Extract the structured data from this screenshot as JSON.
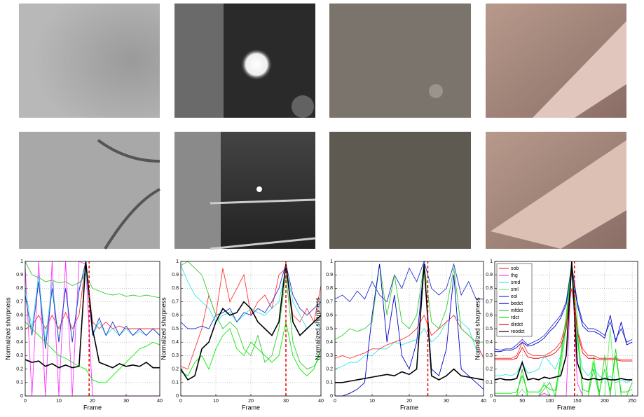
{
  "chart_data": [
    {
      "type": "line",
      "xlabel": "Frame",
      "ylabel": "Normalized sharpness",
      "xlim": [
        0,
        40
      ],
      "ylim": [
        0,
        1
      ],
      "xticks": [
        0,
        10,
        20,
        30,
        40
      ],
      "yticks": [
        0,
        0.1,
        0.2,
        0.3,
        0.4,
        0.5,
        0.6,
        0.7,
        0.8,
        0.9,
        1
      ],
      "grid": true,
      "vline": 19,
      "x": [
        0,
        2,
        4,
        6,
        8,
        10,
        12,
        14,
        16,
        18,
        20,
        22,
        24,
        26,
        28,
        30,
        32,
        34,
        36,
        38,
        40
      ],
      "series": [
        {
          "color": "#ff3333",
          "values": [
            0.5,
            0.52,
            0.6,
            0.5,
            0.6,
            0.5,
            0.62,
            0.5,
            0.6,
            1.0,
            0.55,
            0.5,
            0.55,
            0.5,
            0.52,
            0.5,
            0.5,
            0.5,
            0.5,
            0.5,
            0.5
          ]
        },
        {
          "color": "#ff33ff",
          "values": [
            0.95,
            0,
            1,
            0,
            1,
            0,
            1,
            0,
            1,
            0.98,
            0,
            0,
            0,
            0,
            0,
            0,
            0,
            0,
            0,
            0,
            0
          ]
        },
        {
          "color": "#33e6e6",
          "values": [
            0.8,
            0.5,
            0.9,
            0.4,
            0.85,
            0.4,
            0.8,
            0.4,
            0.8,
            0.95,
            0.45,
            0.55,
            0.45,
            0.5,
            0.45,
            0.5,
            0.45,
            0.48,
            0.45,
            0.5,
            0.45
          ]
        },
        {
          "color": "#2233cc",
          "values": [
            0.75,
            0.45,
            0.85,
            0.35,
            0.8,
            0.4,
            0.8,
            0.4,
            0.78,
            1.0,
            0.45,
            0.58,
            0.45,
            0.55,
            0.45,
            0.52,
            0.45,
            0.5,
            0.45,
            0.5,
            0.45
          ]
        },
        {
          "color": "#33cc33",
          "values": [
            1.0,
            0.9,
            0.88,
            0.85,
            0.86,
            0.84,
            0.85,
            0.82,
            0.84,
            0.9,
            0.8,
            0.78,
            0.76,
            0.75,
            0.76,
            0.74,
            0.75,
            0.74,
            0.75,
            0.74,
            0.73
          ]
        },
        {
          "color": "#00ee00",
          "values": [
            0.55,
            0.5,
            0.45,
            0.4,
            0.35,
            0.3,
            0.28,
            0.25,
            0.22,
            0.2,
            0.12,
            0.1,
            0.1,
            0.15,
            0.2,
            0.25,
            0.3,
            0.35,
            0.37,
            0.4,
            0.38
          ]
        },
        {
          "color": "#000000",
          "values": [
            0.27,
            0.25,
            0.26,
            0.22,
            0.24,
            0.21,
            0.23,
            0.21,
            0.22,
            1.0,
            0.5,
            0.25,
            0.23,
            0.21,
            0.24,
            0.22,
            0.23,
            0.22,
            0.25,
            0.21,
            0.21
          ]
        }
      ]
    },
    {
      "type": "line",
      "xlabel": "Frame",
      "ylabel": "Normalized sharpness",
      "xlim": [
        0,
        40
      ],
      "ylim": [
        0,
        1
      ],
      "xticks": [
        0,
        10,
        20,
        30,
        40
      ],
      "yticks": [
        0,
        0.1,
        0.2,
        0.3,
        0.4,
        0.5,
        0.6,
        0.7,
        0.8,
        0.9,
        1
      ],
      "grid": true,
      "vline": 30,
      "x": [
        0,
        2,
        4,
        6,
        8,
        10,
        12,
        14,
        16,
        18,
        20,
        22,
        24,
        26,
        28,
        30,
        32,
        34,
        36,
        38,
        40
      ],
      "series": [
        {
          "color": "#ff3333",
          "values": [
            0.22,
            0.2,
            0.35,
            0.5,
            0.75,
            0.6,
            0.95,
            0.7,
            0.8,
            0.9,
            0.6,
            0.7,
            0.75,
            0.65,
            0.9,
            0.95,
            0.6,
            0.55,
            0.65,
            0.55,
            0.82
          ]
        },
        {
          "color": "#33e6e6",
          "values": [
            0.97,
            0.85,
            0.75,
            0.7,
            0.65,
            0.55,
            0.6,
            0.62,
            0.55,
            0.6,
            0.65,
            0.62,
            0.6,
            0.65,
            0.7,
            0.95,
            0.7,
            0.6,
            0.5,
            0.55,
            0.5
          ]
        },
        {
          "color": "#2233cc",
          "values": [
            0.55,
            0.5,
            0.5,
            0.52,
            0.5,
            0.6,
            0.62,
            0.65,
            0.55,
            0.62,
            0.6,
            0.65,
            0.62,
            0.7,
            0.8,
            0.98,
            0.75,
            0.65,
            0.6,
            0.65,
            0.7
          ]
        },
        {
          "color": "#33cc33",
          "values": [
            0.97,
            1.0,
            0.95,
            0.9,
            0.75,
            0.6,
            0.5,
            0.55,
            0.5,
            0.35,
            0.3,
            0.45,
            0.25,
            0.3,
            0.5,
            0.9,
            0.4,
            0.25,
            0.2,
            0.22,
            0.3
          ]
        },
        {
          "color": "#00ee00",
          "values": [
            0.18,
            0.15,
            0.25,
            0.3,
            0.2,
            0.35,
            0.45,
            0.5,
            0.35,
            0.3,
            0.4,
            0.35,
            0.3,
            0.25,
            0.3,
            0.55,
            0.3,
            0.2,
            0.15,
            0.2,
            0.35
          ]
        },
        {
          "color": "#000000",
          "values": [
            0.2,
            0.12,
            0.15,
            0.35,
            0.4,
            0.55,
            0.65,
            0.6,
            0.62,
            0.7,
            0.65,
            0.55,
            0.5,
            0.45,
            0.55,
            0.98,
            0.55,
            0.45,
            0.5,
            0.55,
            0.6
          ]
        }
      ]
    },
    {
      "type": "line",
      "xlabel": "Frame",
      "ylabel": "Normalized sharpness",
      "xlim": [
        0,
        40
      ],
      "ylim": [
        0,
        1
      ],
      "xticks": [
        0,
        10,
        20,
        30,
        40
      ],
      "yticks": [
        0,
        0.1,
        0.2,
        0.3,
        0.4,
        0.5,
        0.6,
        0.7,
        0.8,
        0.9,
        1
      ],
      "grid": true,
      "vline": 25,
      "x": [
        0,
        2,
        4,
        6,
        8,
        10,
        12,
        14,
        16,
        18,
        20,
        22,
        24,
        26,
        28,
        30,
        32,
        34,
        36,
        38,
        40
      ],
      "series": [
        {
          "color": "#2233cc",
          "values": [
            0.72,
            0.75,
            0.7,
            0.78,
            0.72,
            0.85,
            0.75,
            0.7,
            0.9,
            0.8,
            0.95,
            0.85,
            1.0,
            0.8,
            0.75,
            0.8,
            0.98,
            0.75,
            0.85,
            0.72,
            0.72
          ]
        },
        {
          "color": "#33e6e6",
          "values": [
            0.2,
            0.22,
            0.25,
            0.25,
            0.3,
            0.3,
            0.35,
            0.35,
            0.4,
            0.38,
            0.4,
            0.42,
            0.5,
            0.4,
            0.45,
            0.55,
            0.6,
            0.55,
            0.5,
            0.35,
            0.3
          ]
        },
        {
          "color": "#ff3333",
          "values": [
            0.28,
            0.3,
            0.28,
            0.3,
            0.32,
            0.35,
            0.35,
            0.38,
            0.4,
            0.42,
            0.45,
            0.5,
            0.6,
            0.45,
            0.5,
            0.55,
            0.6,
            0.5,
            0.45,
            0.4,
            0.28
          ]
        },
        {
          "color": "#33cc33",
          "values": [
            0.42,
            0.45,
            0.5,
            0.48,
            0.5,
            0.55,
            0.98,
            0.6,
            0.9,
            0.55,
            0.5,
            0.6,
            0.98,
            0.55,
            0.5,
            0.65,
            0.95,
            0.5,
            0.45,
            0.4,
            0.4
          ]
        },
        {
          "color": "#0000cc",
          "values": [
            0,
            0,
            0.02,
            0.05,
            0.1,
            0.6,
            0.98,
            0.4,
            0.75,
            0.3,
            0.2,
            0.4,
            0.98,
            0.2,
            0.15,
            0.35,
            0.9,
            0.2,
            0.15,
            0.1,
            0.05
          ]
        },
        {
          "color": "#000000",
          "values": [
            0.1,
            0.1,
            0.11,
            0.12,
            0.13,
            0.14,
            0.15,
            0.16,
            0.15,
            0.18,
            0.16,
            0.2,
            0.98,
            0.15,
            0.12,
            0.15,
            0.2,
            0.15,
            0.14,
            0.13,
            0.12
          ]
        }
      ]
    },
    {
      "type": "line",
      "xlabel": "Frame",
      "ylabel": "Normalized sharpness",
      "xlim": [
        0,
        260
      ],
      "ylim": [
        0,
        1
      ],
      "xticks": [
        0,
        50,
        100,
        150,
        200,
        250
      ],
      "yticks": [
        0,
        0.1,
        0.2,
        0.3,
        0.4,
        0.5,
        0.6,
        0.7,
        0.8,
        0.9,
        1
      ],
      "grid": true,
      "vline": 145,
      "legend": "upper-left",
      "x": [
        0,
        10,
        20,
        30,
        40,
        50,
        60,
        70,
        80,
        90,
        100,
        110,
        120,
        130,
        140,
        150,
        160,
        170,
        180,
        190,
        200,
        210,
        220,
        230,
        240,
        250
      ],
      "series": [
        {
          "name": "sob",
          "color": "#ff3333",
          "values": [
            0.28,
            0.28,
            0.28,
            0.28,
            0.3,
            0.4,
            0.32,
            0.3,
            0.3,
            0.3,
            0.32,
            0.35,
            0.4,
            0.55,
            0.8,
            0.5,
            0.35,
            0.3,
            0.3,
            0.28,
            0.28,
            0.28,
            0.28,
            0.27,
            0.27,
            0.27
          ]
        },
        {
          "name": "thg",
          "color": "#ff33ff",
          "values": [
            0,
            0,
            0,
            0,
            0,
            0,
            0,
            0,
            0,
            0.02,
            0,
            0,
            0,
            0,
            1.0,
            0.1,
            0,
            0,
            0,
            0,
            0,
            0,
            0,
            0,
            0,
            0
          ]
        },
        {
          "name": "smd",
          "color": "#33e6e6",
          "values": [
            0.15,
            0.15,
            0.16,
            0.15,
            0.17,
            0.25,
            0.17,
            0.18,
            0.2,
            0.3,
            0.25,
            0.2,
            0.3,
            0.5,
            0.95,
            0.4,
            0.2,
            0.15,
            0.2,
            0.15,
            0.12,
            0.15,
            0.1,
            0.12,
            0.1,
            0.12
          ]
        },
        {
          "name": "sml",
          "color": "#66ee66",
          "values": [
            0,
            0,
            0,
            0,
            0,
            0.05,
            0,
            0,
            0,
            0.1,
            0,
            0,
            0.2,
            0.5,
            0.98,
            0.6,
            0,
            0,
            0.3,
            0,
            0,
            0.5,
            0,
            0,
            0,
            0
          ]
        },
        {
          "name": "eol",
          "color": "#2233cc",
          "values": [
            0.35,
            0.34,
            0.35,
            0.35,
            0.38,
            0.42,
            0.38,
            0.4,
            0.42,
            0.45,
            0.5,
            0.55,
            0.6,
            0.7,
            0.98,
            0.7,
            0.55,
            0.5,
            0.5,
            0.48,
            0.45,
            0.55,
            0.42,
            0.5,
            0.4,
            0.42
          ]
        },
        {
          "name": "bedct",
          "color": "#0000cc",
          "values": [
            0.33,
            0.33,
            0.34,
            0.34,
            0.36,
            0.4,
            0.37,
            0.38,
            0.4,
            0.43,
            0.48,
            0.52,
            0.58,
            0.68,
            0.96,
            0.68,
            0.52,
            0.48,
            0.48,
            0.46,
            0.43,
            0.6,
            0.4,
            0.55,
            0.38,
            0.4
          ]
        },
        {
          "name": "mfdct",
          "color": "#33cc33",
          "values": [
            0,
            0,
            0,
            0,
            0,
            0.2,
            0,
            0,
            0,
            0.05,
            0.1,
            0,
            0.3,
            0.6,
            1.0,
            0.5,
            0,
            0,
            0.2,
            0,
            0.3,
            0,
            0.35,
            0,
            0,
            0.1
          ]
        },
        {
          "name": "rdct",
          "color": "#00ee00",
          "values": [
            0.02,
            0.02,
            0.02,
            0.02,
            0.03,
            0.15,
            0.03,
            0.03,
            0.03,
            0.08,
            0.05,
            0.04,
            0.25,
            0.55,
            0.99,
            0.45,
            0.05,
            0.03,
            0.25,
            0.03,
            0.2,
            0.04,
            0.3,
            0.03,
            0.03,
            0.05
          ]
        },
        {
          "name": "dirdct",
          "color": "#ee0000",
          "values": [
            0.27,
            0.27,
            0.27,
            0.27,
            0.28,
            0.36,
            0.29,
            0.28,
            0.28,
            0.29,
            0.3,
            0.32,
            0.37,
            0.5,
            0.92,
            0.48,
            0.32,
            0.28,
            0.28,
            0.27,
            0.27,
            0.27,
            0.27,
            0.26,
            0.26,
            0.26
          ]
        },
        {
          "name": "reodct",
          "color": "#000000",
          "values": [
            0.12,
            0.13,
            0.12,
            0.12,
            0.13,
            0.25,
            0.12,
            0.13,
            0.12,
            0.14,
            0.13,
            0.14,
            0.15,
            0.3,
            1.0,
            0.25,
            0.13,
            0.12,
            0.13,
            0.12,
            0.13,
            0.12,
            0.12,
            0.13,
            0.12,
            0.12
          ]
        }
      ]
    }
  ]
}
